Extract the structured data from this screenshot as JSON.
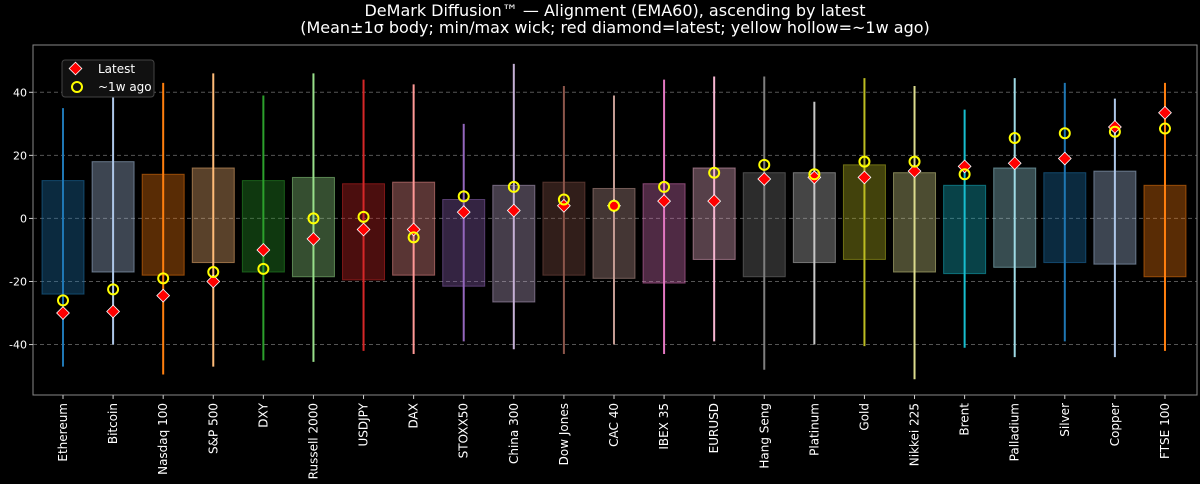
{
  "chart_data": {
    "type": "box",
    "title": "DeMark Diffusion™ — Alignment (EMA60), ascending by latest",
    "subtitle": "(Mean±1σ body; min/max wick; red diamond=latest; yellow hollow=~1w ago)",
    "xlabel": "",
    "ylabel": "",
    "ylim": [
      -56,
      55
    ],
    "yticks": [
      -40,
      -20,
      0,
      20,
      40
    ],
    "grid": true,
    "legend_position": "top-left",
    "legend": [
      {
        "label": "Latest",
        "marker": "diamond",
        "color": "#ff0000"
      },
      {
        "label": "~1w ago",
        "marker": "hollow-circle",
        "color": "#ffff00"
      }
    ],
    "categories": [
      "Ethereum",
      "Bitcoin",
      "Nasdaq 100",
      "S&P 500",
      "DXY",
      "Russell 2000",
      "USDJPY",
      "DAX",
      "STOXX50",
      "China 300",
      "Dow Jones",
      "CAC 40",
      "IBEX 35",
      "EURUSD",
      "Hang Seng",
      "Platinum",
      "Gold",
      "Nikkei 225",
      "Brent",
      "Palladium",
      "Silver",
      "Copper",
      "FTSE 100"
    ],
    "colors": [
      "#1f77b4",
      "#aec7e8",
      "#ff7f0e",
      "#ffbb78",
      "#2ca02c",
      "#98df8a",
      "#d62728",
      "#ff9896",
      "#9467bd",
      "#c5b0d5",
      "#8c564b",
      "#c49c94",
      "#e377c2",
      "#f7b6d2",
      "#7f7f7f",
      "#c7c7c7",
      "#bcbd22",
      "#dbdb8d",
      "#17becf",
      "#9edae5",
      "#1f77b4",
      "#aec7e8",
      "#ff7f0e"
    ],
    "max": [
      35,
      47,
      43,
      46,
      39,
      46,
      44,
      42.5,
      30,
      49,
      42,
      39,
      44,
      45,
      45,
      37,
      44.5,
      42,
      34.5,
      44.5,
      43,
      38,
      43
    ],
    "min": [
      -47,
      -40,
      -49.5,
      -47,
      -45,
      -45.5,
      -42,
      -43,
      -39,
      -41.5,
      -43,
      -40,
      -43,
      -39,
      -48,
      -40,
      -40.5,
      -51,
      -41,
      -44,
      -39,
      -44,
      -42
    ],
    "body_top": [
      12,
      18,
      14,
      16,
      12,
      13,
      11,
      11.5,
      6,
      10.5,
      11.5,
      9.5,
      11,
      16,
      14.5,
      14.5,
      17,
      14.5,
      10.5,
      16,
      14.5,
      15,
      10.5
    ],
    "body_bottom": [
      -24,
      -17,
      -18,
      -14,
      -17,
      -18.5,
      -19.5,
      -18,
      -21.5,
      -26.5,
      -18,
      -19,
      -20.5,
      -13,
      -18.5,
      -14,
      -13,
      -17,
      -17.5,
      -15.5,
      -14,
      -14.5,
      -18.5
    ],
    "latest": [
      -30,
      -29.5,
      -24.5,
      -20,
      -10,
      -6.5,
      -3.5,
      -3.5,
      2,
      2.5,
      4,
      4,
      5.5,
      5.5,
      12.5,
      13,
      13,
      15,
      16.5,
      17.5,
      19,
      29,
      33.5
    ],
    "week_ago": [
      -26,
      -22.5,
      -19,
      -17,
      -16,
      0,
      0.5,
      -6,
      7,
      10,
      6,
      4,
      10,
      14.5,
      17,
      14,
      18,
      18,
      14,
      25.5,
      27,
      27.5,
      28.5
    ]
  }
}
